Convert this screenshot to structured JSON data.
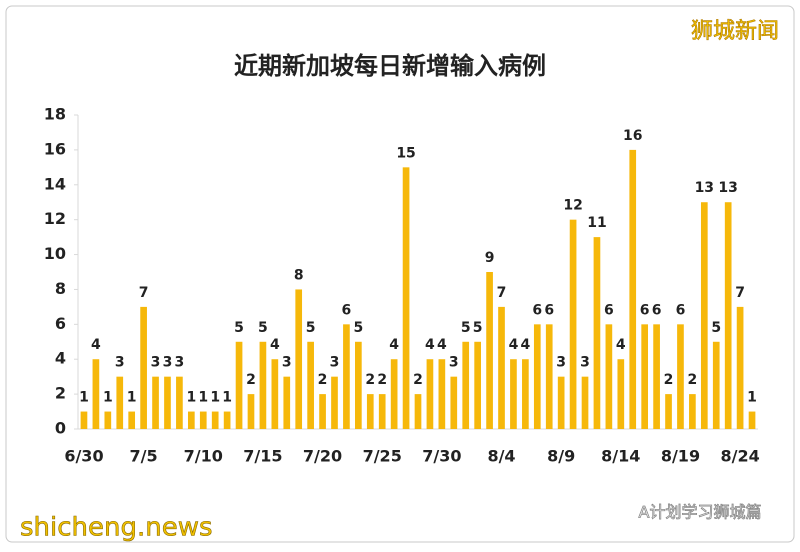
{
  "chart_data": {
    "type": "bar",
    "title": "近期新加坡每日新增输入病例",
    "categories": [
      "6/30",
      null,
      null,
      null,
      null,
      "7/5",
      null,
      null,
      null,
      null,
      "7/10",
      null,
      null,
      null,
      null,
      "7/15",
      null,
      null,
      null,
      null,
      "7/20",
      null,
      null,
      null,
      null,
      "7/25",
      null,
      null,
      null,
      null,
      "7/30",
      null,
      null,
      null,
      null,
      "8/4",
      null,
      null,
      null,
      null,
      "8/9",
      null,
      null,
      null,
      null,
      "8/14",
      null,
      null,
      null,
      null,
      "8/19",
      null,
      null,
      null,
      null,
      "8/24",
      null
    ],
    "values": [
      1,
      4,
      1,
      3,
      1,
      7,
      3,
      3,
      3,
      1,
      1,
      1,
      1,
      5,
      2,
      5,
      4,
      3,
      8,
      5,
      2,
      3,
      6,
      5,
      2,
      2,
      4,
      15,
      2,
      4,
      4,
      3,
      5,
      5,
      9,
      7,
      4,
      4,
      6,
      6,
      3,
      12,
      3,
      11,
      6,
      4,
      16,
      6,
      6,
      2,
      6,
      2,
      13,
      5,
      13,
      7,
      1
    ],
    "color": "#f6b80a",
    "ylim": [
      0,
      18
    ],
    "yticks": [
      0,
      2,
      4,
      6,
      8,
      10,
      12,
      14,
      16,
      18
    ],
    "grid": false
  },
  "watermarks": {
    "top_right": "狮城新闻",
    "bottom_left": "shicheng.news",
    "bottom_right": "A计划学习狮城篇"
  }
}
